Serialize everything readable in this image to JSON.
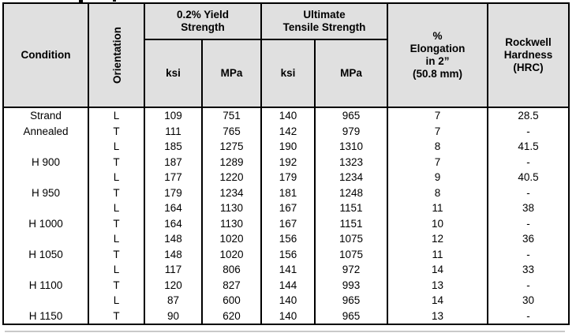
{
  "table": {
    "title_semantic": "mechanical-properties-table",
    "header": {
      "condition": "Condition",
      "orientation": "Orientation",
      "yield_group": "0.2% Yield\nStrength",
      "uts_group": "Ultimate\nTensile Strength",
      "yield_ksi": "ksi",
      "yield_mpa": "MPa",
      "uts_ksi": "ksi",
      "uts_mpa": "MPa",
      "elongation": "%\nElongation\nin 2”\n(50.8 mm)",
      "rockwell": "Rockwell\nHardness\n(HRC)"
    },
    "rows": [
      [
        "Strand",
        "L",
        "109",
        "751",
        "140",
        "965",
        "7",
        "28.5"
      ],
      [
        "Annealed",
        "T",
        "111",
        "765",
        "142",
        "979",
        "7",
        "-"
      ],
      [
        "",
        "L",
        "185",
        "1275",
        "190",
        "1310",
        "8",
        "41.5"
      ],
      [
        "H 900",
        "T",
        "187",
        "1289",
        "192",
        "1323",
        "7",
        "-"
      ],
      [
        "",
        "L",
        "177",
        "1220",
        "179",
        "1234",
        "9",
        "40.5"
      ],
      [
        "H 950",
        "T",
        "179",
        "1234",
        "181",
        "1248",
        "8",
        "-"
      ],
      [
        "",
        "L",
        "164",
        "1130",
        "167",
        "1151",
        "11",
        "38"
      ],
      [
        "H 1000",
        "T",
        "164",
        "1130",
        "167",
        "1151",
        "10",
        "-"
      ],
      [
        "",
        "L",
        "148",
        "1020",
        "156",
        "1075",
        "12",
        "36"
      ],
      [
        "H 1050",
        "T",
        "148",
        "1020",
        "156",
        "1075",
        "11",
        "-"
      ],
      [
        "",
        "L",
        "117",
        "806",
        "141",
        "972",
        "14",
        "33"
      ],
      [
        "H 1100",
        "T",
        "120",
        "827",
        "144",
        "993",
        "13",
        "-"
      ],
      [
        "",
        "L",
        "87",
        "600",
        "140",
        "965",
        "14",
        "30"
      ],
      [
        "H 1150",
        "T",
        "90",
        "620",
        "140",
        "965",
        "13",
        "-"
      ]
    ],
    "colors": {
      "header_bg": "#e0e0e0",
      "border": "#000000",
      "data_bg": "#ffffff"
    }
  }
}
